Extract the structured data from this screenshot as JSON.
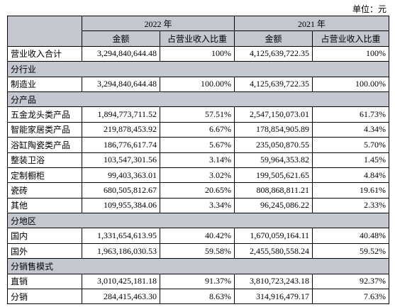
{
  "unit": "单位：元",
  "header": {
    "years": [
      "2022 年",
      "2021 年"
    ],
    "columns": [
      "金额",
      "占营业收入比重",
      "金额",
      "占营业收入比重"
    ]
  },
  "rows": [
    {
      "label": "营业收入合计",
      "cells": [
        "3,294,840,644.48",
        "100%",
        "4,125,639,722.35",
        "100%"
      ]
    },
    {
      "section": "分行业"
    },
    {
      "label": "制造业",
      "cells": [
        "3,294,840,644.48",
        "100.00%",
        "4,125,639,722.35",
        "100.00%"
      ]
    },
    {
      "section": "分产品"
    },
    {
      "label": "五金龙头类产品",
      "cells": [
        "1,894,773,711.52",
        "57.51%",
        "2,547,150,073.01",
        "61.73%"
      ]
    },
    {
      "label": "智能家居类产品",
      "cells": [
        "219,878,453.92",
        "6.67%",
        "178,854,905.89",
        "4.34%"
      ]
    },
    {
      "label": "浴缸陶瓷类产品",
      "cells": [
        "186,776,617.74",
        "5.67%",
        "235,050,870.55",
        "5.70%"
      ]
    },
    {
      "label": "整装卫浴",
      "cells": [
        "103,547,301.56",
        "3.14%",
        "59,964,353.82",
        "1.45%"
      ]
    },
    {
      "label": "定制橱柜",
      "cells": [
        "99,403,363.01",
        "3.02%",
        "199,505,621.65",
        "4.84%"
      ]
    },
    {
      "label": "瓷砖",
      "cells": [
        "680,505,812.67",
        "20.65%",
        "808,868,811.21",
        "19.61%"
      ]
    },
    {
      "label": "其他",
      "cells": [
        "109,955,384.06",
        "3.34%",
        "96,245,086.22",
        "2.33%"
      ]
    },
    {
      "section": "分地区"
    },
    {
      "label": "国内",
      "cells": [
        "1,331,654,613.95",
        "40.42%",
        "1,670,059,164.11",
        "40.48%"
      ]
    },
    {
      "label": "国外",
      "cells": [
        "1,963,186,030.53",
        "59.58%",
        "2,455,580,558.24",
        "59.52%"
      ]
    },
    {
      "section": "分销售模式"
    },
    {
      "label": "直销",
      "cells": [
        "3,010,425,181.18",
        "91.37%",
        "3,810,723,243.18",
        "92.37%"
      ]
    },
    {
      "label": "分销",
      "cells": [
        "284,415,463.30",
        "8.63%",
        "314,916,479.17",
        "7.63%"
      ]
    }
  ]
}
